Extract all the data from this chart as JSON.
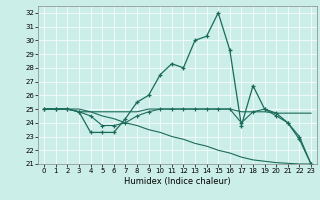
{
  "xlabel": "Humidex (Indice chaleur)",
  "background_color": "#cceee8",
  "line_color": "#1a6b5a",
  "xlim": [
    -0.5,
    23.5
  ],
  "ylim": [
    21,
    32.5
  ],
  "yticks": [
    21,
    22,
    23,
    24,
    25,
    26,
    27,
    28,
    29,
    30,
    31,
    32
  ],
  "xticks": [
    0,
    1,
    2,
    3,
    4,
    5,
    6,
    7,
    8,
    9,
    10,
    11,
    12,
    13,
    14,
    15,
    16,
    17,
    18,
    19,
    20,
    21,
    22,
    23
  ],
  "series1_x": [
    0,
    1,
    2,
    3,
    4,
    5,
    6,
    7,
    8,
    9,
    10,
    11,
    12,
    13,
    14,
    15,
    16,
    17,
    18,
    19,
    20,
    21,
    22,
    23
  ],
  "series1_y": [
    25.0,
    25.0,
    25.0,
    24.8,
    23.3,
    23.3,
    23.3,
    24.3,
    25.5,
    26.0,
    27.5,
    28.3,
    28.0,
    30.0,
    30.3,
    32.0,
    29.3,
    23.8,
    26.7,
    25.0,
    24.7,
    24.0,
    22.8,
    21.0
  ],
  "series2_x": [
    0,
    1,
    2,
    3,
    4,
    5,
    6,
    7,
    8,
    9,
    10,
    11,
    12,
    13,
    14,
    15,
    16,
    17,
    18,
    19,
    20,
    21,
    22,
    23
  ],
  "series2_y": [
    25.0,
    25.0,
    25.0,
    24.8,
    24.8,
    24.8,
    24.8,
    24.8,
    24.8,
    25.0,
    25.0,
    25.0,
    25.0,
    25.0,
    25.0,
    25.0,
    25.0,
    24.8,
    24.8,
    24.8,
    24.7,
    24.7,
    24.7,
    24.7
  ],
  "series3_x": [
    0,
    1,
    2,
    3,
    4,
    5,
    6,
    7,
    8,
    9,
    10,
    11,
    12,
    13,
    14,
    15,
    16,
    17,
    18,
    19,
    20,
    21,
    22,
    23
  ],
  "series3_y": [
    25.0,
    25.0,
    25.0,
    24.8,
    24.5,
    23.8,
    23.8,
    24.0,
    24.5,
    24.8,
    25.0,
    25.0,
    25.0,
    25.0,
    25.0,
    25.0,
    25.0,
    24.0,
    24.8,
    25.0,
    24.5,
    24.0,
    23.0,
    21.0
  ],
  "series4_x": [
    0,
    1,
    2,
    3,
    4,
    5,
    6,
    7,
    8,
    9,
    10,
    11,
    12,
    13,
    14,
    15,
    16,
    17,
    18,
    19,
    20,
    21,
    22,
    23
  ],
  "series4_y": [
    25.0,
    25.0,
    25.0,
    25.0,
    24.8,
    24.5,
    24.3,
    24.0,
    23.8,
    23.5,
    23.3,
    23.0,
    22.8,
    22.5,
    22.3,
    22.0,
    21.8,
    21.5,
    21.3,
    21.2,
    21.1,
    21.05,
    21.0,
    21.0
  ]
}
